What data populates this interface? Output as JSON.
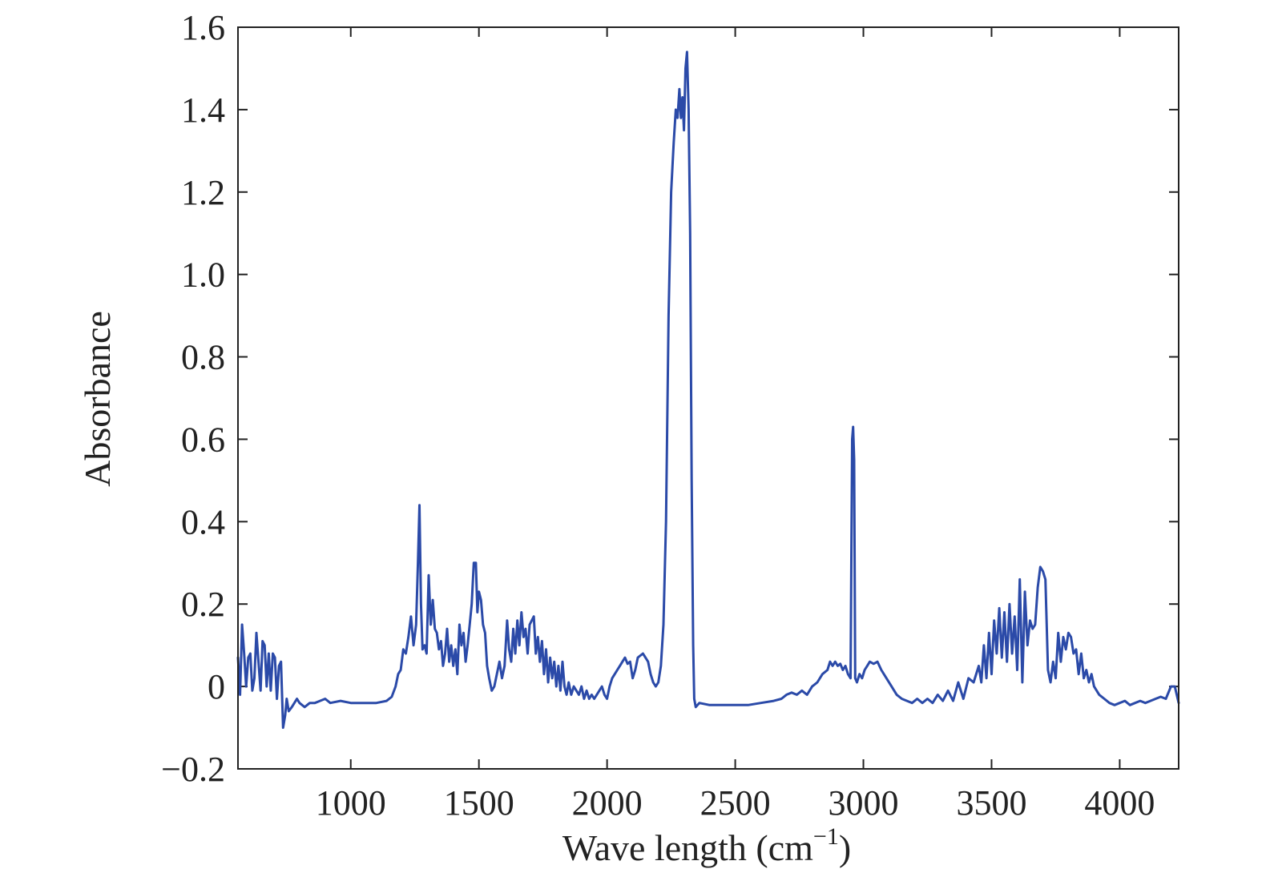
{
  "chart_data": {
    "type": "line",
    "title": "",
    "xlabel": "Wave length (cm",
    "xlabel_sup": "−1",
    "xlabel_suffix": ")",
    "ylabel": "Absorbance",
    "xlim": [
      560,
      4230
    ],
    "ylim": [
      -0.2,
      1.6
    ],
    "grid": false,
    "legend": "none",
    "colors": {
      "series": "#2b4aa8",
      "axis": "#222222"
    },
    "x_ticks": [
      1000,
      1500,
      2000,
      2500,
      3000,
      3500,
      4000
    ],
    "x_tick_labels": [
      "1000",
      "1500",
      "2000",
      "2500",
      "3000",
      "3500",
      "4000"
    ],
    "y_ticks": [
      -0.2,
      0,
      0.2,
      0.4,
      0.6,
      0.8,
      1.0,
      1.2,
      1.4,
      1.6
    ],
    "y_tick_labels": [
      "−0.2",
      "0",
      "0.2",
      "0.4",
      "0.6",
      "0.8",
      "1.0",
      "1.2",
      "1.4",
      "1.6"
    ],
    "series": [
      {
        "points": [
          [
            560,
            0.07
          ],
          [
            568,
            -0.02
          ],
          [
            576,
            0.15
          ],
          [
            584,
            0.08
          ],
          [
            592,
            0.0
          ],
          [
            600,
            0.07
          ],
          [
            608,
            0.08
          ],
          [
            616,
            -0.01
          ],
          [
            624,
            0.02
          ],
          [
            632,
            0.13
          ],
          [
            640,
            0.06
          ],
          [
            648,
            -0.01
          ],
          [
            656,
            0.11
          ],
          [
            664,
            0.1
          ],
          [
            672,
            0.0
          ],
          [
            680,
            0.08
          ],
          [
            688,
            -0.01
          ],
          [
            696,
            0.08
          ],
          [
            704,
            0.07
          ],
          [
            712,
            -0.03
          ],
          [
            720,
            0.05
          ],
          [
            728,
            0.06
          ],
          [
            736,
            -0.1
          ],
          [
            744,
            -0.07
          ],
          [
            750,
            -0.03
          ],
          [
            758,
            -0.06
          ],
          [
            770,
            -0.05
          ],
          [
            780,
            -0.04
          ],
          [
            790,
            -0.03
          ],
          [
            800,
            -0.04
          ],
          [
            820,
            -0.05
          ],
          [
            840,
            -0.04
          ],
          [
            860,
            -0.04
          ],
          [
            880,
            -0.035
          ],
          [
            900,
            -0.03
          ],
          [
            920,
            -0.04
          ],
          [
            960,
            -0.035
          ],
          [
            1000,
            -0.04
          ],
          [
            1050,
            -0.04
          ],
          [
            1100,
            -0.04
          ],
          [
            1140,
            -0.035
          ],
          [
            1160,
            -0.025
          ],
          [
            1175,
            0.0
          ],
          [
            1185,
            0.03
          ],
          [
            1195,
            0.04
          ],
          [
            1205,
            0.09
          ],
          [
            1215,
            0.08
          ],
          [
            1225,
            0.12
          ],
          [
            1235,
            0.17
          ],
          [
            1245,
            0.1
          ],
          [
            1255,
            0.15
          ],
          [
            1262,
            0.3
          ],
          [
            1268,
            0.44
          ],
          [
            1274,
            0.2
          ],
          [
            1280,
            0.09
          ],
          [
            1288,
            0.1
          ],
          [
            1296,
            0.08
          ],
          [
            1304,
            0.27
          ],
          [
            1312,
            0.15
          ],
          [
            1320,
            0.21
          ],
          [
            1328,
            0.14
          ],
          [
            1336,
            0.13
          ],
          [
            1344,
            0.09
          ],
          [
            1352,
            0.11
          ],
          [
            1360,
            0.05
          ],
          [
            1368,
            0.08
          ],
          [
            1376,
            0.14
          ],
          [
            1384,
            0.06
          ],
          [
            1392,
            0.1
          ],
          [
            1400,
            0.05
          ],
          [
            1408,
            0.09
          ],
          [
            1416,
            0.03
          ],
          [
            1424,
            0.15
          ],
          [
            1432,
            0.1
          ],
          [
            1440,
            0.13
          ],
          [
            1448,
            0.06
          ],
          [
            1456,
            0.1
          ],
          [
            1464,
            0.15
          ],
          [
            1472,
            0.2
          ],
          [
            1480,
            0.3
          ],
          [
            1488,
            0.3
          ],
          [
            1494,
            0.18
          ],
          [
            1500,
            0.23
          ],
          [
            1508,
            0.21
          ],
          [
            1516,
            0.15
          ],
          [
            1524,
            0.13
          ],
          [
            1532,
            0.05
          ],
          [
            1540,
            0.02
          ],
          [
            1550,
            -0.01
          ],
          [
            1560,
            0.0
          ],
          [
            1570,
            0.03
          ],
          [
            1580,
            0.06
          ],
          [
            1590,
            0.02
          ],
          [
            1600,
            0.05
          ],
          [
            1610,
            0.16
          ],
          [
            1618,
            0.09
          ],
          [
            1626,
            0.06
          ],
          [
            1634,
            0.14
          ],
          [
            1642,
            0.08
          ],
          [
            1650,
            0.16
          ],
          [
            1658,
            0.1
          ],
          [
            1666,
            0.18
          ],
          [
            1674,
            0.12
          ],
          [
            1682,
            0.14
          ],
          [
            1690,
            0.08
          ],
          [
            1698,
            0.15
          ],
          [
            1706,
            0.16
          ],
          [
            1714,
            0.17
          ],
          [
            1722,
            0.08
          ],
          [
            1730,
            0.12
          ],
          [
            1738,
            0.06
          ],
          [
            1746,
            0.11
          ],
          [
            1754,
            0.03
          ],
          [
            1762,
            0.09
          ],
          [
            1770,
            0.01
          ],
          [
            1778,
            0.07
          ],
          [
            1786,
            0.02
          ],
          [
            1794,
            0.06
          ],
          [
            1802,
            0.0
          ],
          [
            1810,
            0.05
          ],
          [
            1818,
            -0.01
          ],
          [
            1826,
            0.06
          ],
          [
            1834,
            0.0
          ],
          [
            1842,
            -0.02
          ],
          [
            1850,
            0.01
          ],
          [
            1860,
            -0.02
          ],
          [
            1870,
            0.0
          ],
          [
            1880,
            -0.01
          ],
          [
            1890,
            -0.02
          ],
          [
            1900,
            0.0
          ],
          [
            1910,
            -0.03
          ],
          [
            1920,
            -0.01
          ],
          [
            1930,
            -0.03
          ],
          [
            1940,
            -0.02
          ],
          [
            1950,
            -0.03
          ],
          [
            1960,
            -0.02
          ],
          [
            1970,
            -0.01
          ],
          [
            1980,
            0.0
          ],
          [
            1990,
            -0.02
          ],
          [
            2000,
            -0.03
          ],
          [
            2010,
            0.0
          ],
          [
            2020,
            0.02
          ],
          [
            2030,
            0.03
          ],
          [
            2040,
            0.04
          ],
          [
            2050,
            0.05
          ],
          [
            2060,
            0.06
          ],
          [
            2070,
            0.07
          ],
          [
            2080,
            0.055
          ],
          [
            2090,
            0.06
          ],
          [
            2100,
            0.02
          ],
          [
            2110,
            0.04
          ],
          [
            2120,
            0.07
          ],
          [
            2130,
            0.075
          ],
          [
            2140,
            0.08
          ],
          [
            2150,
            0.07
          ],
          [
            2160,
            0.06
          ],
          [
            2170,
            0.03
          ],
          [
            2180,
            0.01
          ],
          [
            2190,
            0.0
          ],
          [
            2200,
            0.01
          ],
          [
            2210,
            0.05
          ],
          [
            2220,
            0.15
          ],
          [
            2230,
            0.4
          ],
          [
            2240,
            0.9
          ],
          [
            2250,
            1.2
          ],
          [
            2260,
            1.32
          ],
          [
            2268,
            1.4
          ],
          [
            2275,
            1.38
          ],
          [
            2282,
            1.45
          ],
          [
            2288,
            1.38
          ],
          [
            2294,
            1.43
          ],
          [
            2300,
            1.35
          ],
          [
            2306,
            1.5
          ],
          [
            2312,
            1.54
          ],
          [
            2318,
            1.4
          ],
          [
            2324,
            1.1
          ],
          [
            2330,
            0.5
          ],
          [
            2336,
            0.1
          ],
          [
            2340,
            -0.03
          ],
          [
            2346,
            -0.05
          ],
          [
            2360,
            -0.04
          ],
          [
            2400,
            -0.045
          ],
          [
            2450,
            -0.045
          ],
          [
            2500,
            -0.045
          ],
          [
            2550,
            -0.045
          ],
          [
            2600,
            -0.04
          ],
          [
            2650,
            -0.035
          ],
          [
            2680,
            -0.03
          ],
          [
            2700,
            -0.02
          ],
          [
            2720,
            -0.015
          ],
          [
            2740,
            -0.02
          ],
          [
            2760,
            -0.01
          ],
          [
            2780,
            -0.02
          ],
          [
            2800,
            0.0
          ],
          [
            2820,
            0.01
          ],
          [
            2840,
            0.03
          ],
          [
            2860,
            0.04
          ],
          [
            2870,
            0.06
          ],
          [
            2880,
            0.05
          ],
          [
            2890,
            0.06
          ],
          [
            2900,
            0.05
          ],
          [
            2910,
            0.055
          ],
          [
            2920,
            0.04
          ],
          [
            2930,
            0.05
          ],
          [
            2940,
            0.03
          ],
          [
            2950,
            0.02
          ],
          [
            2956,
            0.6
          ],
          [
            2960,
            0.63
          ],
          [
            2964,
            0.55
          ],
          [
            2968,
            0.02
          ],
          [
            2975,
            0.01
          ],
          [
            2985,
            0.03
          ],
          [
            2995,
            0.02
          ],
          [
            3005,
            0.04
          ],
          [
            3015,
            0.05
          ],
          [
            3025,
            0.06
          ],
          [
            3040,
            0.055
          ],
          [
            3055,
            0.06
          ],
          [
            3070,
            0.04
          ],
          [
            3090,
            0.02
          ],
          [
            3110,
            0.0
          ],
          [
            3130,
            -0.02
          ],
          [
            3150,
            -0.03
          ],
          [
            3170,
            -0.035
          ],
          [
            3190,
            -0.04
          ],
          [
            3210,
            -0.03
          ],
          [
            3230,
            -0.04
          ],
          [
            3250,
            -0.03
          ],
          [
            3270,
            -0.04
          ],
          [
            3290,
            -0.02
          ],
          [
            3310,
            -0.035
          ],
          [
            3330,
            -0.01
          ],
          [
            3350,
            -0.035
          ],
          [
            3370,
            0.01
          ],
          [
            3390,
            -0.03
          ],
          [
            3410,
            0.02
          ],
          [
            3430,
            0.01
          ],
          [
            3450,
            0.05
          ],
          [
            3460,
            0.01
          ],
          [
            3470,
            0.1
          ],
          [
            3480,
            0.02
          ],
          [
            3490,
            0.13
          ],
          [
            3500,
            0.03
          ],
          [
            3510,
            0.16
          ],
          [
            3520,
            0.08
          ],
          [
            3530,
            0.19
          ],
          [
            3540,
            0.07
          ],
          [
            3550,
            0.18
          ],
          [
            3560,
            0.06
          ],
          [
            3570,
            0.2
          ],
          [
            3580,
            0.08
          ],
          [
            3590,
            0.17
          ],
          [
            3600,
            0.04
          ],
          [
            3610,
            0.26
          ],
          [
            3620,
            0.01
          ],
          [
            3630,
            0.23
          ],
          [
            3640,
            0.1
          ],
          [
            3650,
            0.16
          ],
          [
            3660,
            0.14
          ],
          [
            3670,
            0.15
          ],
          [
            3680,
            0.24
          ],
          [
            3690,
            0.29
          ],
          [
            3700,
            0.28
          ],
          [
            3710,
            0.26
          ],
          [
            3720,
            0.04
          ],
          [
            3730,
            0.01
          ],
          [
            3740,
            0.06
          ],
          [
            3750,
            0.02
          ],
          [
            3760,
            0.13
          ],
          [
            3770,
            0.06
          ],
          [
            3780,
            0.12
          ],
          [
            3790,
            0.09
          ],
          [
            3800,
            0.13
          ],
          [
            3810,
            0.12
          ],
          [
            3820,
            0.08
          ],
          [
            3830,
            0.09
          ],
          [
            3840,
            0.03
          ],
          [
            3850,
            0.08
          ],
          [
            3860,
            0.02
          ],
          [
            3870,
            0.04
          ],
          [
            3880,
            0.01
          ],
          [
            3890,
            0.03
          ],
          [
            3900,
            0.0
          ],
          [
            3920,
            -0.02
          ],
          [
            3940,
            -0.03
          ],
          [
            3960,
            -0.04
          ],
          [
            3980,
            -0.045
          ],
          [
            4000,
            -0.04
          ],
          [
            4020,
            -0.035
          ],
          [
            4040,
            -0.045
          ],
          [
            4060,
            -0.04
          ],
          [
            4080,
            -0.035
          ],
          [
            4100,
            -0.04
          ],
          [
            4120,
            -0.035
          ],
          [
            4140,
            -0.03
          ],
          [
            4160,
            -0.025
          ],
          [
            4180,
            -0.03
          ],
          [
            4200,
            0.0
          ],
          [
            4215,
            0.0
          ],
          [
            4230,
            -0.04
          ]
        ]
      }
    ]
  }
}
